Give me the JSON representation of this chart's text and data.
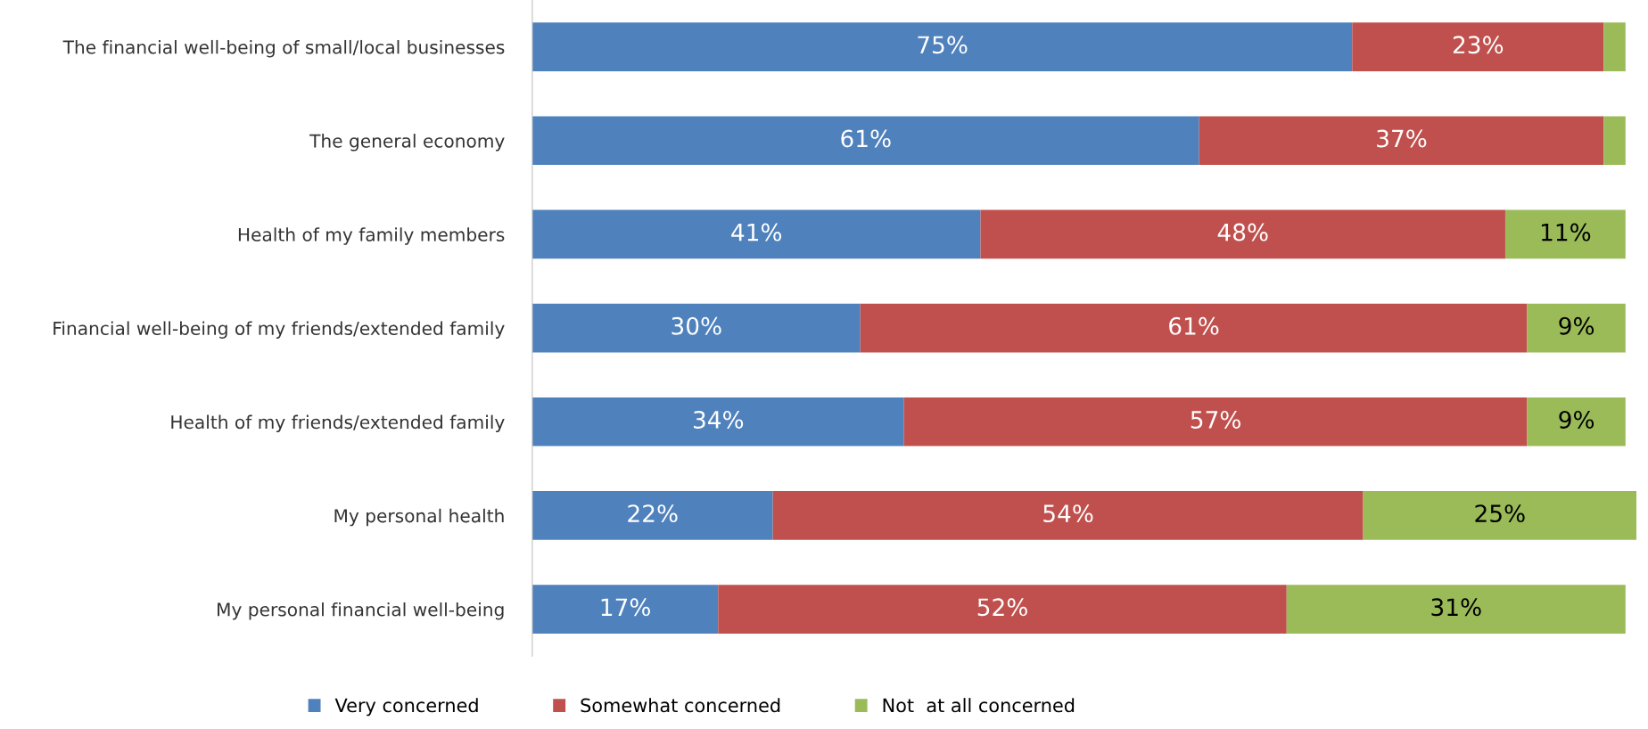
{
  "chart_data": {
    "type": "bar",
    "orientation": "horizontal",
    "stacked": true,
    "legend": "bottom",
    "categories": [
      "The financial well-being of small/local businesses",
      "The general economy",
      "Health of my family members",
      "Financial well-being of my friends/extended family",
      "Health of my friends/extended family",
      "My personal health",
      "My personal financial well-being"
    ],
    "series": [
      {
        "name": "Very concerned",
        "color": "#4f81bd",
        "values": [
          75,
          61,
          41,
          30,
          34,
          22,
          17
        ],
        "value_labels": [
          "75%",
          "61%",
          "41%",
          "30%",
          "34%",
          "22%",
          "17%"
        ]
      },
      {
        "name": "Somewhat concerned",
        "color": "#c0504d",
        "values": [
          23,
          37,
          48,
          61,
          57,
          54,
          52
        ],
        "value_labels": [
          "23%",
          "37%",
          "48%",
          "61%",
          "57%",
          "54%",
          "52%"
        ]
      },
      {
        "name": "Not  at all concerned",
        "color": "#9bbb59",
        "values": [
          2,
          2,
          11,
          9,
          9,
          25,
          31
        ],
        "value_labels": [
          null,
          null,
          "11%",
          "9%",
          "9%",
          "25%",
          "31%"
        ]
      }
    ]
  }
}
